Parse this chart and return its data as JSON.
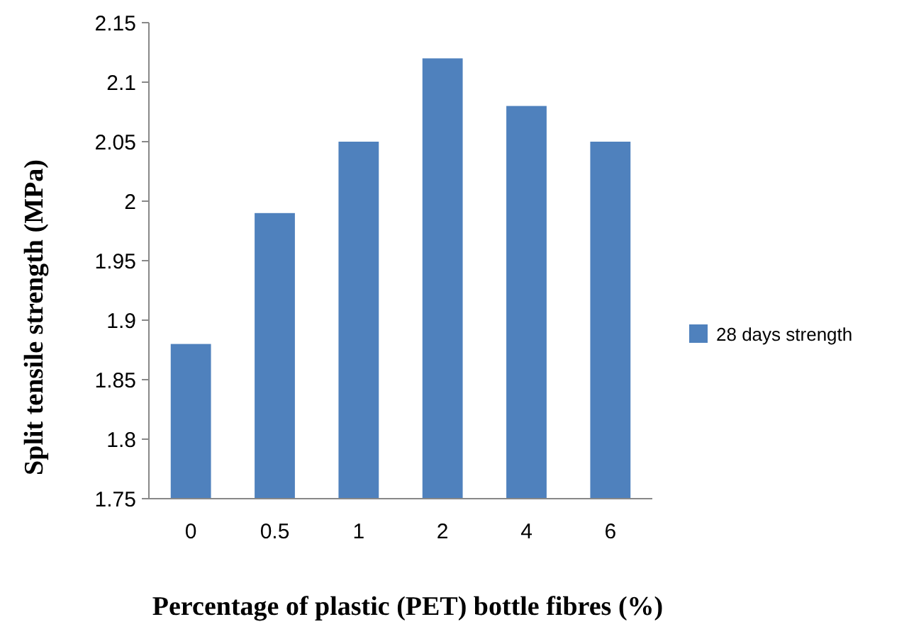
{
  "chart_data": {
    "type": "bar",
    "xlabel": "Percentage of plastic (PET) bottle fibres (%)",
    "ylabel": "Split tensile strength (MPa)",
    "categories": [
      "0",
      "0.5",
      "1",
      "2",
      "4",
      "6"
    ],
    "series": [
      {
        "name": "28 days strength",
        "color": "#4f81bd",
        "values": [
          1.88,
          1.99,
          2.05,
          2.12,
          2.08,
          2.05
        ]
      }
    ],
    "ylim": [
      1.75,
      2.15
    ],
    "yticks": [
      1.75,
      {
        "value": 1.8,
        "label": "1.8"
      },
      1.85,
      {
        "value": 1.9,
        "label": "1.9"
      },
      1.95,
      {
        "value": 2,
        "label": "2"
      },
      2.05,
      {
        "value": 2.1,
        "label": "2.1"
      },
      2.15
    ],
    "grid": false,
    "legend": "right"
  }
}
